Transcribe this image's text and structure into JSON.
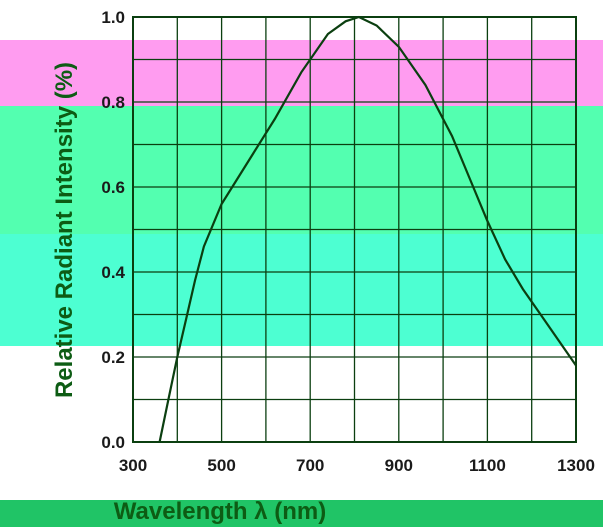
{
  "colors": {
    "band_top": "#ff9cf0",
    "band_mid": "#53ffb0",
    "band_low": "#4dffd2",
    "band_bottom": "#20c466",
    "grid": "#0b3f10",
    "curve": "#0b3f10",
    "axis_title": "#0d5c14"
  },
  "chart_data": {
    "type": "line",
    "xlabel": "Wavelength λ (nm)",
    "ylabel": "Relative Radiant Intensity (%)",
    "xlim": [
      300,
      1300
    ],
    "ylim": [
      0,
      1.0
    ],
    "x_ticks": [
      "300",
      "500",
      "700",
      "900",
      "1100",
      "1300"
    ],
    "y_ticks": [
      "0.0",
      "0.2",
      "0.4",
      "0.6",
      "0.8",
      "1.0"
    ],
    "grid": true,
    "series": [
      {
        "x": [
          360,
          380,
          400,
          420,
          440,
          460,
          500,
          560,
          620,
          680,
          740,
          780,
          810,
          850,
          900,
          960,
          1020,
          1060,
          1100,
          1140,
          1180,
          1220,
          1260,
          1300
        ],
        "y": [
          0.0,
          0.1,
          0.2,
          0.29,
          0.38,
          0.46,
          0.56,
          0.66,
          0.76,
          0.87,
          0.96,
          0.99,
          1.0,
          0.98,
          0.93,
          0.84,
          0.72,
          0.62,
          0.52,
          0.43,
          0.36,
          0.3,
          0.24,
          0.18
        ]
      }
    ]
  }
}
